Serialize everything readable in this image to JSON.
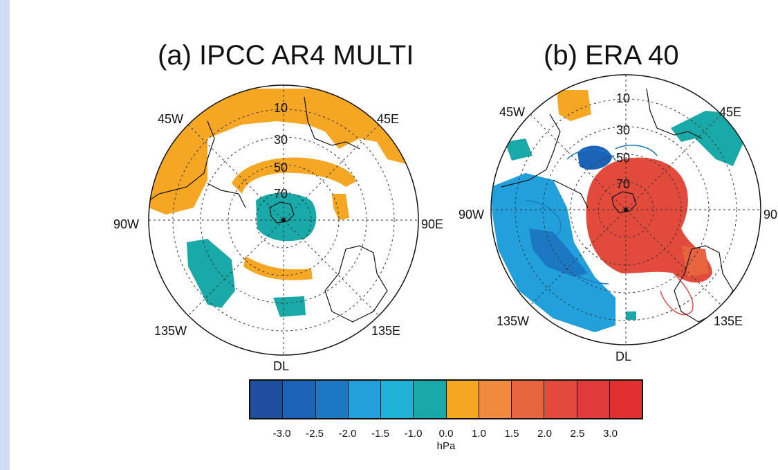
{
  "panel_a": {
    "title": "(a) IPCC AR4 MULTI",
    "longitudes": {
      "w45": "45W",
      "e45": "45E",
      "w90": "90W",
      "e90": "90E",
      "w135": "135W",
      "e135": "135E",
      "dl": "DL"
    },
    "latitudes": [
      "10",
      "30",
      "50",
      "70"
    ]
  },
  "panel_b": {
    "title": "(b) ERA 40",
    "longitudes": {
      "w45": "45W",
      "e45": "45E",
      "w90": "90W",
      "e90": "90",
      "w135": "135W",
      "e135": "135E",
      "dl": "DL"
    },
    "latitudes": [
      "10",
      "30",
      "50",
      "70"
    ]
  },
  "colorbar": {
    "colors": [
      "#1f4e9c",
      "#1b63b6",
      "#1d78c4",
      "#22a0dc",
      "#1eb3d6",
      "#1aa9a9",
      "#f5a623",
      "#f08a3c",
      "#e8643e",
      "#e24a3c",
      "#e03b3b",
      "#e22f2f"
    ],
    "ticks": [
      "-3.0",
      "-2.5",
      "-2.0",
      "-1.5",
      "-1.0",
      "0.0",
      "1.0",
      "1.5",
      "2.0",
      "2.5",
      "3.0"
    ],
    "unit": "hPa"
  }
}
